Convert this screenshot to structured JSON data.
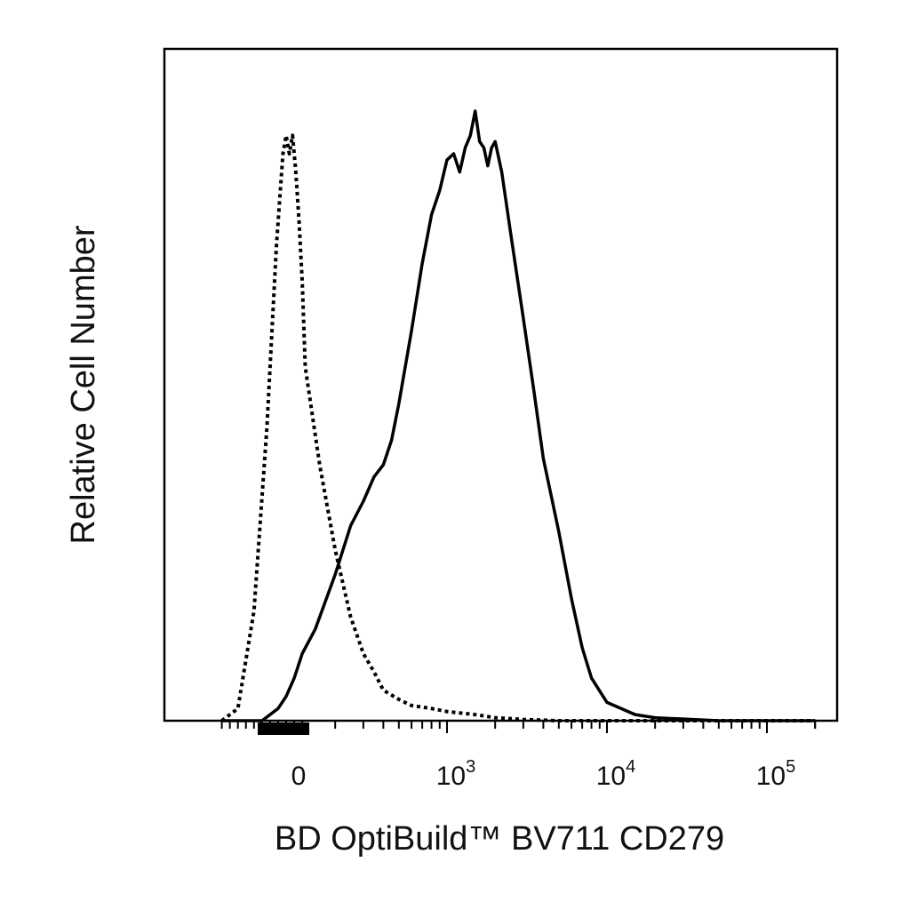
{
  "chart_data": {
    "type": "line",
    "title": "",
    "xlabel": "BD OptiBuild™ BV711 CD279",
    "ylabel": "Relative Cell Number",
    "x_scale": "biexponential",
    "xlim": [
      -400,
      200000
    ],
    "ylim": [
      0,
      1
    ],
    "grid": false,
    "x_tick_labels": [
      {
        "value": 0,
        "base": "0",
        "exp": ""
      },
      {
        "value": 1000,
        "base": "10",
        "exp": "3"
      },
      {
        "value": 10000,
        "base": "10",
        "exp": "4"
      },
      {
        "value": 100000,
        "base": "10",
        "exp": "5"
      }
    ],
    "series": [
      {
        "style": "dotted",
        "x": [
          -400,
          -300,
          -200,
          -120,
          -60,
          -20,
          0,
          20,
          40,
          60,
          80,
          100,
          130,
          160,
          200,
          250,
          300,
          350,
          400,
          500,
          600,
          800,
          1000,
          1500,
          2000,
          3000,
          5000,
          10000,
          20000,
          100000,
          200000
        ],
        "y": [
          0.0,
          0.02,
          0.18,
          0.48,
          0.78,
          0.93,
          0.96,
          0.93,
          0.96,
          0.9,
          0.82,
          0.72,
          0.58,
          0.42,
          0.28,
          0.17,
          0.11,
          0.08,
          0.05,
          0.035,
          0.025,
          0.02,
          0.015,
          0.01,
          0.005,
          0.002,
          0.0,
          0.0,
          0.0,
          0.0,
          0.0
        ]
      },
      {
        "style": "solid",
        "x": [
          -400,
          -150,
          -50,
          0,
          50,
          100,
          150,
          200,
          250,
          300,
          350,
          400,
          450,
          500,
          600,
          700,
          800,
          900,
          1000,
          1100,
          1200,
          1300,
          1400,
          1500,
          1600,
          1700,
          1800,
          1900,
          2000,
          2200,
          2500,
          3000,
          3500,
          4000,
          5000,
          6000,
          7000,
          8000,
          10000,
          15000,
          20000,
          50000,
          100000,
          200000
        ],
        "y": [
          0.0,
          0.0,
          0.02,
          0.04,
          0.07,
          0.11,
          0.15,
          0.24,
          0.32,
          0.36,
          0.4,
          0.42,
          0.46,
          0.52,
          0.64,
          0.75,
          0.83,
          0.87,
          0.92,
          0.93,
          0.9,
          0.94,
          0.96,
          1.0,
          0.95,
          0.94,
          0.91,
          0.94,
          0.95,
          0.9,
          0.8,
          0.66,
          0.54,
          0.43,
          0.31,
          0.2,
          0.12,
          0.07,
          0.03,
          0.01,
          0.005,
          0.0,
          0.0,
          0.0
        ]
      }
    ]
  }
}
